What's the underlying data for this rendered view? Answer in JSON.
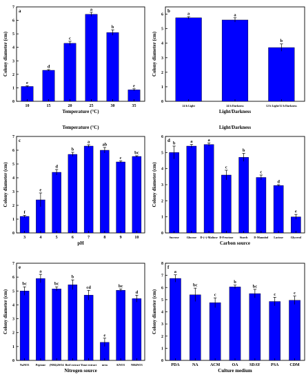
{
  "chart_data": [
    {
      "type": "bar",
      "panel_label": "a",
      "categories": [
        "10",
        "15",
        "20",
        "25",
        "30",
        "35"
      ],
      "values": [
        1.1,
        2.3,
        4.3,
        6.45,
        5.1,
        0.85
      ],
      "errors": [
        0.05,
        0.05,
        0.15,
        0.15,
        0.2,
        0.08
      ],
      "significance": [
        "e",
        "d",
        "c",
        "a",
        "b",
        "e"
      ],
      "xlabel": "Temperature (°C)",
      "ylabel": "Colony diameter (cm)",
      "ylim": [
        0,
        7
      ],
      "yticks": [
        0,
        1,
        2,
        3,
        4,
        5,
        6,
        7
      ],
      "caption": "Temperature (°C)"
    },
    {
      "type": "bar",
      "panel_label": "b",
      "categories": [
        "24 h Light",
        "24 h Darkness",
        "12 h Light/12 h Darkness"
      ],
      "values": [
        5.75,
        5.6,
        3.7
      ],
      "errors": [
        0.08,
        0.15,
        0.25
      ],
      "significance": [
        "a",
        "a",
        "b"
      ],
      "xlabel": "Light/Darkness",
      "ylabel": "Colony diameter (cm)",
      "ylim": [
        0,
        6.5
      ],
      "yticks": [
        0,
        1,
        2,
        3,
        4,
        5,
        6
      ],
      "caption": "Light/Darkness"
    },
    {
      "type": "bar",
      "panel_label": "c",
      "categories": [
        "3",
        "4",
        "5",
        "6",
        "7",
        "8",
        "9",
        "10"
      ],
      "values": [
        1.2,
        2.4,
        4.4,
        5.7,
        6.3,
        6.0,
        5.15,
        5.55
      ],
      "errors": [
        0.08,
        0.5,
        0.2,
        0.15,
        0.1,
        0.2,
        0.08,
        0.05
      ],
      "significance": [
        "f",
        "e",
        "d",
        "b",
        "a",
        "ab",
        "c",
        "bc"
      ],
      "xlabel": "pH",
      "ylabel": "Colony diameter (cm)",
      "ylim": [
        0,
        7
      ],
      "yticks": [
        0,
        1,
        2,
        3,
        4,
        5,
        6,
        7
      ]
    },
    {
      "type": "bar",
      "panel_label": "d",
      "categories": [
        "Sucrose",
        "Glucose",
        "D-(+)-Maltose",
        "D-Fructose",
        "Starch",
        "D-Mannitol",
        "Lactose",
        "Glycerol"
      ],
      "values": [
        5.0,
        5.4,
        5.5,
        3.6,
        4.7,
        3.45,
        2.95,
        1.0
      ],
      "errors": [
        0.4,
        0.1,
        0.1,
        0.3,
        0.25,
        0.15,
        0.05,
        0.15
      ],
      "significance": [
        "b",
        "a",
        "a",
        "c",
        "b",
        "c",
        "d",
        "e"
      ],
      "xlabel": "Carbon source",
      "ylabel": "Colony diameter (cm)",
      "ylim": [
        0,
        6
      ],
      "yticks": [
        0,
        1,
        2,
        3,
        4,
        5,
        6
      ]
    },
    {
      "type": "bar",
      "panel_label": "e",
      "categories": [
        "NaNO3",
        "Peptone",
        "(NH4)2SO4",
        "Beef extract",
        "Yeast extract",
        "urea",
        "KNO3",
        "NH4NO3"
      ],
      "values": [
        5.0,
        5.9,
        5.15,
        5.45,
        4.7,
        1.3,
        5.05,
        4.45
      ],
      "errors": [
        0.3,
        0.3,
        0.15,
        0.35,
        0.35,
        0.3,
        0.1,
        0.25
      ],
      "significance": [
        "bc",
        "a",
        "bc",
        "b",
        "cd",
        "e",
        "bc",
        "d"
      ],
      "xlabel": "Nitrogen source",
      "ylabel": "Colony diameter (cm)",
      "ylim": [
        0,
        7
      ],
      "yticks": [
        0,
        1,
        2,
        3,
        4,
        5,
        6,
        7
      ]
    },
    {
      "type": "bar",
      "panel_label": "f",
      "categories": [
        "PDA",
        "NA",
        "ACM",
        "OA",
        "SDAY",
        "PSA",
        "CDM"
      ],
      "values": [
        6.75,
        5.4,
        4.75,
        6.05,
        5.5,
        4.85,
        4.95
      ],
      "errors": [
        0.3,
        0.55,
        0.4,
        0.15,
        0.35,
        0.35,
        0.35
      ],
      "significance": [
        "a",
        "bc",
        "c",
        "b",
        "bc",
        "c",
        "c"
      ],
      "xlabel": "Culture medium",
      "ylabel": "Colony diameter (cm)",
      "ylim": [
        0,
        8
      ],
      "yticks": [
        0,
        1,
        2,
        3,
        4,
        5,
        6,
        7,
        8
      ]
    }
  ],
  "colors": {
    "bar": "#0000ff",
    "bar_edge": "#000000",
    "axis": "#000000",
    "text": "#000000"
  }
}
